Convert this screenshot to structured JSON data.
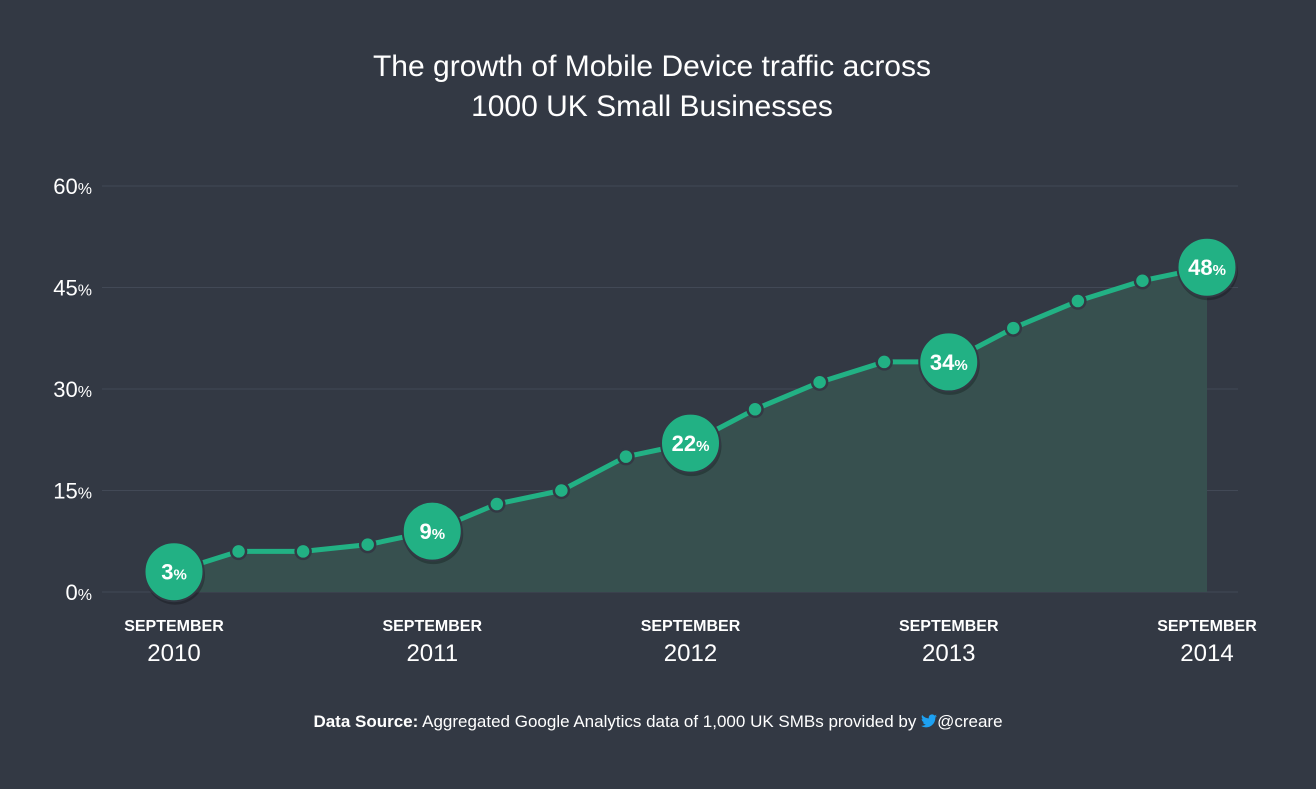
{
  "colors": {
    "background": "#333944",
    "line": "#22b184",
    "area": "#37504f",
    "grid": "#424956",
    "text": "#ffffff",
    "twitter": "#1da1f2"
  },
  "chart_data": {
    "type": "area",
    "title": [
      "The growth of Mobile Device traffic across",
      "1000 UK Small Businesses"
    ],
    "ylim": [
      0,
      60
    ],
    "yticks": [
      {
        "value": 60,
        "num": "60",
        "unit": "%"
      },
      {
        "value": 45,
        "num": "45",
        "unit": "%"
      },
      {
        "value": 30,
        "num": "30",
        "unit": "%"
      },
      {
        "value": 15,
        "num": "15",
        "unit": "%"
      },
      {
        "value": 0,
        "num": "0",
        "unit": "%"
      }
    ],
    "xticks": [
      {
        "index": 0,
        "month": "SEPTEMBER",
        "year": "2010"
      },
      {
        "index": 4,
        "month": "SEPTEMBER",
        "year": "2011"
      },
      {
        "index": 8,
        "month": "SEPTEMBER",
        "year": "2012"
      },
      {
        "index": 12,
        "month": "SEPTEMBER",
        "year": "2013"
      },
      {
        "index": 16,
        "month": "SEPTEMBER",
        "year": "2014"
      }
    ],
    "values": [
      3,
      6,
      6,
      7,
      9,
      13,
      15,
      20,
      22,
      27,
      31,
      34,
      34,
      39,
      43,
      46,
      48
    ],
    "labeled_points": [
      {
        "index": 0,
        "num": "3",
        "unit": "%"
      },
      {
        "index": 4,
        "num": "9",
        "unit": "%"
      },
      {
        "index": 8,
        "num": "22",
        "unit": "%"
      },
      {
        "index": 12,
        "num": "34",
        "unit": "%"
      },
      {
        "index": 16,
        "num": "48",
        "unit": "%"
      }
    ],
    "grid": true
  },
  "source": {
    "label": "Data Source:",
    "text": "Aggregated Google Analytics data of 1,000 UK SMBs provided by",
    "icon": "twitter-bird-icon",
    "handle": "@creare"
  }
}
